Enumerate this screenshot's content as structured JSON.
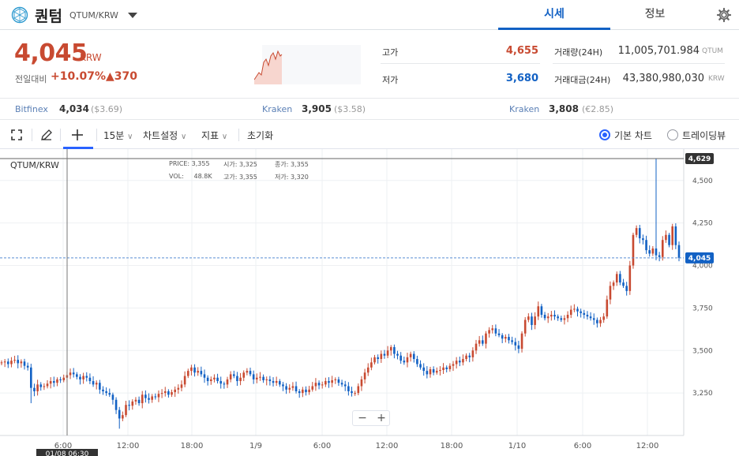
{
  "header": {
    "coin_name": "퀀텀",
    "coin_code": "QTUM/KRW",
    "tabs": [
      "시세",
      "정보"
    ]
  },
  "price": {
    "current": "4,045",
    "unit": "KRW",
    "change_label": "전일대비",
    "change_rate": "+10.07%",
    "change_amount": "▲370"
  },
  "stats": {
    "high_label": "고가",
    "high_value": "4,655",
    "low_label": "저가",
    "low_value": "3,680",
    "volume_label": "거래량(24H)",
    "volume_value": "11,005,701.984",
    "volume_unit": "QTUM",
    "amount_label": "거래대금(24H)",
    "amount_value": "43,380,980,030",
    "amount_unit": "KRW"
  },
  "exchanges": [
    {
      "name": "Bitfinex",
      "price": "4,034",
      "usd": "($3.69)"
    },
    {
      "name": "Kraken",
      "price": "3,905",
      "usd": "($3.58)"
    },
    {
      "name": "Kraken",
      "price": "3,808",
      "usd": "(€2.85)"
    }
  ],
  "toolbar": {
    "interval": "15분",
    "settings": "차트설정",
    "indicators": "지표",
    "reset": "초기화",
    "basic_chart": "기본 차트",
    "tradingview": "트레이딩뷰"
  },
  "chart": {
    "symbol": "QTUM/KRW",
    "ohlc": {
      "price_label": "PRICE:",
      "price": "3,355",
      "open_label": "시가:",
      "open": "3,325",
      "close_label": "종가:",
      "close": "3,355",
      "vol_label": "VOL:",
      "vol": "48.8K",
      "high_label": "고가:",
      "high": "3,355",
      "low_label": "저가:",
      "low": "3,320"
    },
    "crosshair_time": "01/08 06:30",
    "high_marker": "4,629",
    "last_marker": "4,045",
    "zoom_out": "−",
    "zoom_in": "+"
  },
  "colors": {
    "up": "#c84a31",
    "down": "#1261c4",
    "accent": "#2962ff"
  },
  "chart_data": {
    "type": "candlestick",
    "y_ticks": [
      "4,500",
      "4,250",
      "4,000",
      "3,750",
      "3,500",
      "3,250"
    ],
    "y_tick_values": [
      4500,
      4250,
      4000,
      3750,
      3500,
      3250
    ],
    "x_ticks": [
      "6:00",
      "12:00",
      "18:00",
      "1/9",
      "6:00",
      "12:00",
      "18:00",
      "1/10",
      "6:00",
      "12:00"
    ],
    "ylim": [
      3000,
      4680
    ],
    "grid": true,
    "closes": [
      3430,
      3435,
      3420,
      3440,
      3445,
      3425,
      3435,
      3410,
      3400,
      3280,
      3260,
      3300,
      3285,
      3290,
      3305,
      3320,
      3310,
      3330,
      3325,
      3340,
      3355,
      3370,
      3360,
      3345,
      3330,
      3350,
      3340,
      3320,
      3300,
      3310,
      3270,
      3260,
      3250,
      3240,
      3210,
      3150,
      3100,
      3120,
      3180,
      3175,
      3200,
      3210,
      3190,
      3240,
      3220,
      3210,
      3230,
      3225,
      3245,
      3250,
      3260,
      3240,
      3255,
      3270,
      3280,
      3300,
      3350,
      3380,
      3400,
      3370,
      3380,
      3360,
      3340,
      3320,
      3330,
      3340,
      3320,
      3305,
      3300,
      3330,
      3360,
      3350,
      3320,
      3340,
      3370,
      3380,
      3360,
      3330,
      3340,
      3345,
      3325,
      3330,
      3320,
      3310,
      3320,
      3300,
      3290,
      3270,
      3280,
      3290,
      3260,
      3250,
      3270,
      3255,
      3270,
      3290,
      3310,
      3295,
      3300,
      3320,
      3310,
      3325,
      3330,
      3310,
      3300,
      3290,
      3260,
      3250,
      3250,
      3290,
      3330,
      3370,
      3400,
      3430,
      3460,
      3450,
      3480,
      3470,
      3500,
      3520,
      3480,
      3470,
      3440,
      3430,
      3460,
      3480,
      3450,
      3420,
      3400,
      3380,
      3360,
      3390,
      3370,
      3380,
      3385,
      3400,
      3390,
      3410,
      3420,
      3440,
      3430,
      3450,
      3470,
      3460,
      3500,
      3540,
      3560,
      3540,
      3600,
      3620,
      3630,
      3600,
      3590,
      3570,
      3580,
      3560,
      3550,
      3530,
      3510,
      3600,
      3680,
      3700,
      3650,
      3700,
      3760,
      3710,
      3690,
      3700,
      3710,
      3700,
      3690,
      3680,
      3690,
      3710,
      3740,
      3745,
      3730,
      3720,
      3710,
      3700,
      3690,
      3680,
      3660,
      3680,
      3700,
      3800,
      3880,
      3900,
      3950,
      3900,
      3880,
      3850,
      4000,
      4180,
      4220,
      4160,
      4150,
      4090,
      4070,
      4100,
      4060,
      4050,
      4150,
      4180,
      4120,
      4230,
      4120,
      4045
    ],
    "highs_index_spike": 200,
    "last_close": 4045,
    "session_high": 4629
  }
}
